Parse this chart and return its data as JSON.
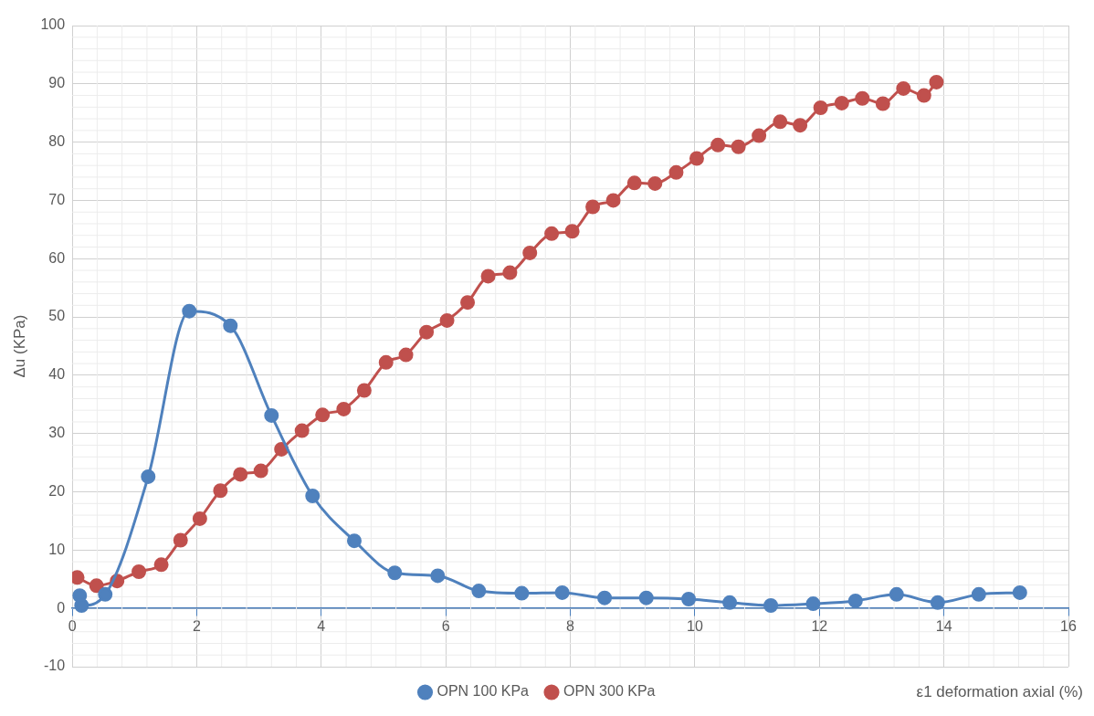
{
  "chart_data": {
    "type": "line",
    "xlabel": "ε1 deformation axial (%)",
    "ylabel": "Δu (KPa)",
    "xlim": [
      0,
      16
    ],
    "xticks": [
      0,
      2,
      4,
      6,
      8,
      10,
      12,
      14,
      16
    ],
    "ylim": [
      -10,
      100
    ],
    "yticks": [
      -10,
      0,
      10,
      20,
      30,
      40,
      50,
      60,
      70,
      80,
      90,
      100
    ],
    "grid": true,
    "legend": "bottom",
    "marker": "circle",
    "line_style": "solid",
    "series": [
      {
        "name": "OPN 100 KPa",
        "color": "#4f81bd",
        "x": [
          0.12,
          0.15,
          0.53,
          1.22,
          1.88,
          2.54,
          3.2,
          3.86,
          4.53,
          5.18,
          5.87,
          6.53,
          7.22,
          7.87,
          8.55,
          9.22,
          9.9,
          10.56,
          11.22,
          11.9,
          12.58,
          13.24,
          13.9,
          14.56,
          15.22
        ],
        "values": [
          2.2,
          0.5,
          2.4,
          22.6,
          51,
          48.5,
          33.1,
          19.3,
          11.6,
          6.1,
          5.6,
          3,
          2.6,
          2.7,
          1.8,
          1.8,
          1.6,
          1,
          0.5,
          0.8,
          1.3,
          2.4,
          1,
          2.4,
          2.7
        ]
      },
      {
        "name": "OPN 300 KPa",
        "color": "#c0504d",
        "x": [
          0.08,
          0.39,
          0.72,
          1.07,
          1.43,
          1.74,
          2.05,
          2.38,
          2.7,
          3.03,
          3.36,
          3.69,
          4.02,
          4.36,
          4.69,
          5.04,
          5.36,
          5.69,
          6.02,
          6.35,
          6.68,
          7.03,
          7.35,
          7.7,
          8.03,
          8.36,
          8.69,
          9.03,
          9.36,
          9.7,
          10.03,
          10.37,
          10.7,
          11.03,
          11.37,
          11.69,
          12.02,
          12.36,
          12.69,
          13.02,
          13.35,
          13.68,
          13.88
        ],
        "values": [
          5.3,
          3.9,
          4.7,
          6.3,
          7.5,
          11.7,
          15.4,
          20.2,
          23,
          23.6,
          27.3,
          30.5,
          33.2,
          34.2,
          37.4,
          42.2,
          43.5,
          47.4,
          49.4,
          52.5,
          57,
          57.6,
          61,
          64.3,
          64.7,
          68.9,
          70,
          73,
          72.9,
          74.8,
          77.2,
          79.5,
          79.2,
          81.1,
          83.5,
          82.9,
          85.9,
          86.7,
          87.5,
          86.6,
          89.2,
          88,
          90.3
        ]
      }
    ]
  }
}
